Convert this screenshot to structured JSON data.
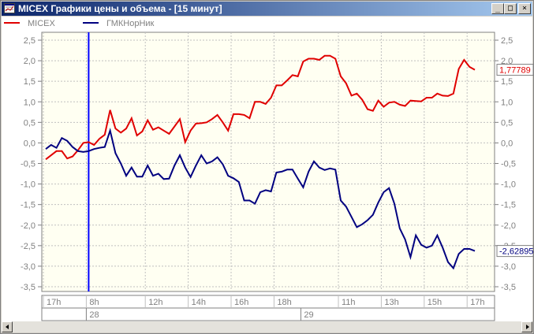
{
  "window": {
    "title": "MICEX Графики цены и объема - [15 минут]",
    "buttons": {
      "minimize": "_",
      "maximize": "□",
      "close": "×"
    }
  },
  "colors": {
    "micex": "#e00000",
    "gmk": "#000080",
    "cursor": "#0000ff",
    "grid": "#b8b8b8",
    "plot_bg": "#fffff2"
  },
  "legend": [
    {
      "name": "MICEX",
      "color": "#e00000"
    },
    {
      "name": "ГМКНорНик",
      "color": "#000080"
    }
  ],
  "chart_data": {
    "type": "line",
    "ylim": [
      -3.5,
      2.5
    ],
    "yticks": [
      "2,5",
      "2,0",
      "1,5",
      "1,0",
      "0,5",
      "0,0",
      "-0,5",
      "-1,0",
      "-1,5",
      "-2,0",
      "-2,5",
      "-3,0",
      "-3,5"
    ],
    "x_time_labels": [
      {
        "label": "17h",
        "i": 0
      },
      {
        "label": "8h",
        "i": 8
      },
      {
        "label": "12h",
        "i": 19
      },
      {
        "label": "14h",
        "i": 27
      },
      {
        "label": "16h",
        "i": 35
      },
      {
        "label": "18h",
        "i": 43
      },
      {
        "label": "11h",
        "i": 55
      },
      {
        "label": "13h",
        "i": 63
      },
      {
        "label": "15h",
        "i": 71
      },
      {
        "label": "17h",
        "i": 79
      }
    ],
    "x_date_labels": [
      {
        "label": "28",
        "i": 8
      },
      {
        "label": "29",
        "i": 48
      }
    ],
    "cursor_index": 8,
    "series": [
      {
        "name": "MICEX",
        "color": "#e00000",
        "last_label": "1,77789",
        "values": [
          -0.4,
          -0.3,
          -0.2,
          -0.2,
          -0.38,
          -0.33,
          -0.18,
          0.0,
          0.02,
          -0.05,
          0.1,
          0.2,
          0.8,
          0.35,
          0.25,
          0.35,
          0.6,
          0.18,
          0.28,
          0.55,
          0.32,
          0.38,
          0.3,
          0.22,
          0.4,
          0.58,
          0.02,
          0.3,
          0.47,
          0.48,
          0.5,
          0.58,
          0.68,
          0.5,
          0.3,
          0.7,
          0.7,
          0.68,
          0.6,
          1.0,
          1.0,
          0.95,
          1.1,
          1.4,
          1.4,
          1.52,
          1.65,
          1.62,
          1.98,
          2.05,
          2.05,
          2.02,
          2.12,
          2.12,
          2.05,
          1.62,
          1.45,
          1.15,
          1.2,
          1.05,
          0.82,
          0.78,
          1.03,
          0.88,
          0.98,
          1.0,
          0.93,
          0.9,
          1.03,
          1.02,
          1.01,
          1.1,
          1.1,
          1.2,
          1.15,
          1.14,
          1.2,
          1.8,
          2.02,
          1.85,
          1.78
        ]
      },
      {
        "name": "ГМКНорНик",
        "color": "#000080",
        "last_label": "-2,62895",
        "values": [
          -0.15,
          -0.05,
          -0.12,
          0.12,
          0.05,
          -0.1,
          -0.2,
          -0.22,
          -0.2,
          -0.15,
          -0.12,
          -0.1,
          0.3,
          -0.25,
          -0.5,
          -0.8,
          -0.6,
          -0.82,
          -0.82,
          -0.55,
          -0.8,
          -0.75,
          -0.88,
          -0.87,
          -0.55,
          -0.3,
          -0.6,
          -0.83,
          -0.55,
          -0.3,
          -0.5,
          -0.45,
          -0.35,
          -0.52,
          -0.8,
          -0.86,
          -0.95,
          -1.4,
          -1.4,
          -1.48,
          -1.2,
          -1.15,
          -1.18,
          -0.72,
          -0.7,
          -0.65,
          -0.65,
          -0.87,
          -1.08,
          -0.7,
          -0.45,
          -0.6,
          -0.66,
          -0.62,
          -0.65,
          -1.4,
          -1.55,
          -1.8,
          -2.05,
          -1.98,
          -1.88,
          -1.75,
          -1.45,
          -1.2,
          -1.1,
          -1.48,
          -2.08,
          -2.35,
          -2.78,
          -2.25,
          -2.48,
          -2.55,
          -2.5,
          -2.25,
          -2.55,
          -2.9,
          -3.05,
          -2.7,
          -2.58,
          -2.58,
          -2.63
        ]
      }
    ]
  }
}
